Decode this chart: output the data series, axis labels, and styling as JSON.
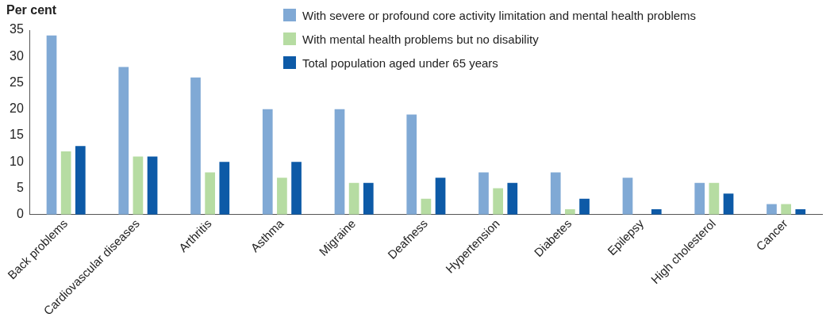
{
  "chart_data": {
    "type": "bar",
    "ylabel": "Per cent",
    "categories": [
      "Back problems",
      "Cardiovascular diseases",
      "Arthritis",
      "Asthma",
      "Migraine",
      "Deafness",
      "Hypertension",
      "Diabetes",
      "Epilepsy",
      "High cholesterol",
      "Cancer"
    ],
    "series": [
      {
        "name": "With severe or profound core activity limitation and mental health problems",
        "color": "#80a9d5",
        "values": [
          34,
          28,
          26,
          20,
          20,
          19,
          8,
          8,
          7,
          6,
          2
        ]
      },
      {
        "name": "With mental health problems but no disability",
        "color": "#b6dca2",
        "values": [
          12,
          11,
          8,
          7,
          6,
          3,
          5,
          1,
          0,
          6,
          2
        ]
      },
      {
        "name": "Total population aged under 65 years",
        "color": "#0d5aa7",
        "values": [
          13,
          11,
          10,
          10,
          6,
          7,
          6,
          3,
          1,
          4,
          1
        ]
      }
    ],
    "ylim": [
      0,
      35
    ],
    "yticks": [
      0,
      5,
      10,
      15,
      20,
      25,
      30,
      35
    ],
    "grid": false,
    "legend": "top right"
  }
}
